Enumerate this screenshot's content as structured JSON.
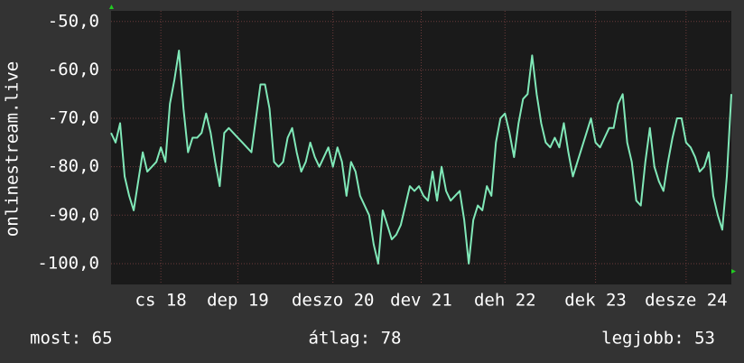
{
  "chart_data": {
    "type": "line",
    "y_label": "onlinestream.live",
    "series": [
      {
        "color": "#80e8b8",
        "values": [
          -73,
          -75,
          -71,
          -82,
          -86,
          -89,
          -83,
          -77,
          -81,
          -80,
          -79,
          -76,
          -79,
          -67,
          -62,
          -56,
          -68,
          -77,
          -74,
          -74,
          -73,
          -69,
          -73,
          -79,
          -84,
          -73,
          -72,
          -73,
          -74,
          -75,
          -76,
          -77,
          -70,
          -63,
          -63,
          -68,
          -79,
          -80,
          -79,
          -74,
          -72,
          -77,
          -81,
          -79,
          -75,
          -78,
          -80,
          -78,
          -76,
          -80,
          -76,
          -79,
          -86,
          -79,
          -81,
          -86,
          -88,
          -90,
          -96,
          -100,
          -89,
          -92,
          -95,
          -94,
          -92,
          -88,
          -84,
          -85,
          -84,
          -86,
          -87,
          -81,
          -87,
          -80,
          -85,
          -87,
          -86,
          -85,
          -91,
          -100,
          -91,
          -88,
          -89,
          -84,
          -86,
          -75,
          -70,
          -69,
          -73,
          -78,
          -71,
          -66,
          -65,
          -57,
          -65,
          -71,
          -75,
          -76,
          -74,
          -76,
          -71,
          -77,
          -82,
          -79,
          -76,
          -73,
          -70,
          -75,
          -76,
          -74,
          -72,
          -72,
          -67,
          -65,
          -75,
          -79,
          -87,
          -88,
          -79,
          -72,
          -80,
          -83,
          -85,
          -79,
          -74,
          -70,
          -70,
          -75,
          -76,
          -78,
          -81,
          -80,
          -77,
          -86,
          -90,
          -93,
          -82,
          -65
        ]
      }
    ],
    "xlim": [
      0,
      137
    ],
    "xticks": [
      {
        "value": 11,
        "label": "cs 18"
      },
      {
        "value": 28,
        "label": "dep 19"
      },
      {
        "value": 49,
        "label": "deszo 20"
      },
      {
        "value": 68.5,
        "label": "dev 21"
      },
      {
        "value": 87,
        "label": "deh 22"
      },
      {
        "value": 107,
        "label": "dek 23"
      },
      {
        "value": 127,
        "label": "desze 24"
      }
    ],
    "ylim": [
      -104.3,
      -47.8
    ],
    "yticks": [
      {
        "value": -50,
        "label": "-50,0"
      },
      {
        "value": -60,
        "label": "-60,0"
      },
      {
        "value": -70,
        "label": "-70,0"
      },
      {
        "value": -80,
        "label": "-80,0"
      },
      {
        "value": -90,
        "label": "-90,0"
      },
      {
        "value": -100,
        "label": "-100,0"
      }
    ],
    "grid": true,
    "footer": [
      "most: 65",
      "átlag: 78",
      "legjobb: 53"
    ]
  }
}
